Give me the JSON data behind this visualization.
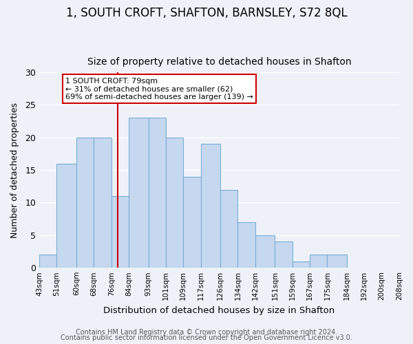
{
  "title": "1, SOUTH CROFT, SHAFTON, BARNSLEY, S72 8QL",
  "subtitle": "Size of property relative to detached houses in Shafton",
  "xlabel": "Distribution of detached houses by size in Shafton",
  "ylabel": "Number of detached properties",
  "bar_edges": [
    43,
    51,
    60,
    68,
    76,
    84,
    93,
    101,
    109,
    117,
    126,
    134,
    142,
    151,
    159,
    167,
    175,
    184,
    192,
    200,
    208
  ],
  "bar_heights": [
    2,
    16,
    20,
    20,
    11,
    23,
    23,
    20,
    14,
    19,
    12,
    7,
    5,
    4,
    1,
    2,
    2,
    0,
    0,
    0
  ],
  "bar_color": "#c5d8f0",
  "bar_edge_color": "#7aadd4",
  "property_line_x": 79,
  "annotation_line1": "1 SOUTH CROFT: 79sqm",
  "annotation_line2": "← 31% of detached houses are smaller (62)",
  "annotation_line3": "69% of semi-detached houses are larger (139) →",
  "annotation_box_color": "#cc0000",
  "annotation_box_bg": "#ffffff",
  "ylim": [
    0,
    30
  ],
  "yticks": [
    0,
    5,
    10,
    15,
    20,
    25,
    30
  ],
  "tick_labels": [
    "43sqm",
    "51sqm",
    "60sqm",
    "68sqm",
    "76sqm",
    "84sqm",
    "93sqm",
    "101sqm",
    "109sqm",
    "117sqm",
    "126sqm",
    "134sqm",
    "142sqm",
    "151sqm",
    "159sqm",
    "167sqm",
    "175sqm",
    "184sqm",
    "192sqm",
    "200sqm",
    "208sqm"
  ],
  "footer_line1": "Contains HM Land Registry data © Crown copyright and database right 2024.",
  "footer_line2": "Contains public sector information licensed under the Open Government Licence v3.0.",
  "background_color": "#eef2f8",
  "plot_bg_color": "#eef2f8",
  "grid_color": "#ffffff",
  "title_fontsize": 12,
  "subtitle_fontsize": 10,
  "footer_fontsize": 7
}
